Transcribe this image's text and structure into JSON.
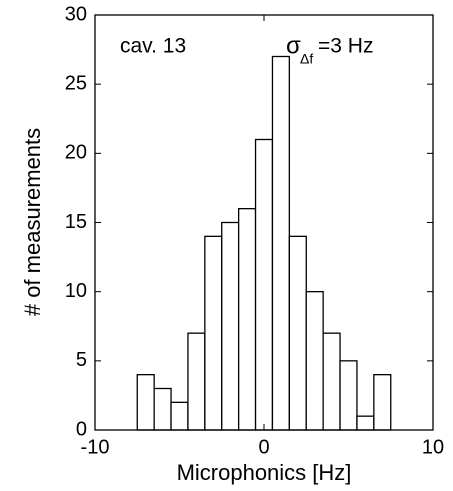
{
  "chart_data": {
    "type": "histogram",
    "xlabel": "Microphonics [Hz]",
    "ylabel": "# of measurements",
    "annotations": [
      "cav. 13",
      "σ",
      "Δf",
      "=3 Hz"
    ],
    "bins": [
      -7.5,
      -6.5,
      -5.5,
      -4.5,
      -3.5,
      -2.5,
      -1.5,
      -0.5,
      0.5,
      1.5,
      2.5,
      3.5,
      4.5,
      5.5,
      6.5,
      7.5
    ],
    "values": [
      4,
      3,
      2,
      7,
      14,
      15,
      16,
      21,
      27,
      14,
      10,
      7,
      5,
      1,
      4
    ],
    "color": "#ffffff",
    "edgecolor": "#000000",
    "xlim": [
      -10,
      10
    ],
    "xticks": [
      -10,
      0,
      10
    ],
    "ylim": [
      0,
      30
    ],
    "yticks": [
      0,
      5,
      10,
      15,
      20,
      25,
      30
    ],
    "grid": false
  }
}
